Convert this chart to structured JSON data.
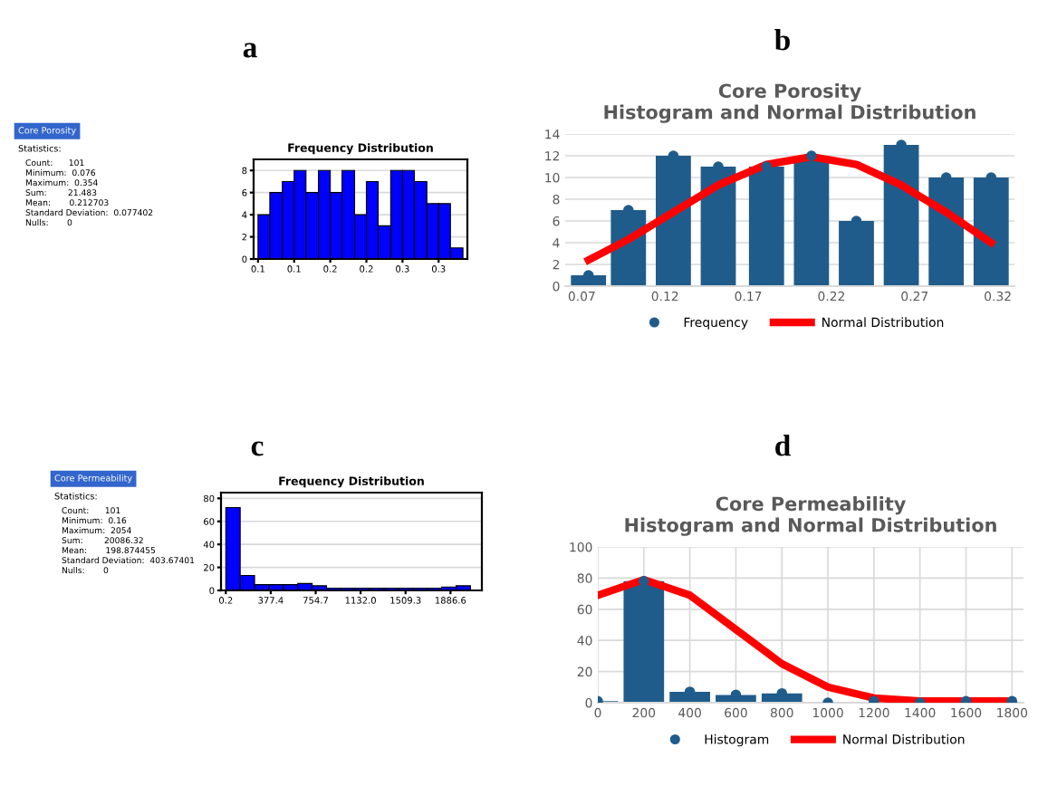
{
  "chart_data": [
    {
      "type": "histogram",
      "title": "Frequency Distribution",
      "annotations": [
        "a",
        "Core Porosity",
        "Statistics:",
        "Count:      101",
        "Minimum:  0.076",
        "Maximum:  0.354",
        "Sum:        21.483",
        "Mean:       0.212703",
        "Standard Deviation:  0.077402",
        "Nulls:       0"
      ],
      "bins": [
        0.076,
        0.092,
        0.109,
        0.125,
        0.141,
        0.158,
        0.174,
        0.19,
        0.207,
        0.223,
        0.239,
        0.256,
        0.272,
        0.288,
        0.305,
        0.321,
        0.337,
        0.354
      ],
      "values": [
        4,
        6,
        7,
        8,
        6,
        8,
        6,
        8,
        4,
        7,
        3,
        8,
        8,
        7,
        5,
        5,
        1
      ],
      "color": "#0000ff",
      "xlim": [
        0.07,
        0.36
      ],
      "xticks": [
        {
          "value": 0.076,
          "label": "0.1"
        },
        {
          "value": 0.125,
          "label": "0.1"
        },
        {
          "value": 0.174,
          "label": "0.2"
        },
        {
          "value": 0.223,
          "label": "0.2"
        },
        {
          "value": 0.272,
          "label": "0.3"
        },
        {
          "value": 0.321,
          "label": "0.3"
        }
      ],
      "ylim": [
        0,
        9
      ],
      "yticks": [
        0,
        2,
        4,
        6,
        8
      ],
      "grid": "y"
    },
    {
      "type": "bar",
      "title": "Core Porosity\nHistogram and Normal Distribution",
      "annotations": [
        "b"
      ],
      "x": [
        0.074,
        0.098,
        0.125,
        0.152,
        0.181,
        0.208,
        0.235,
        0.262,
        0.289,
        0.316
      ],
      "series": [
        {
          "type": "bar",
          "color": "#1f5c8b",
          "values": [
            1,
            7,
            12,
            11,
            11,
            12,
            6,
            13,
            10,
            10
          ]
        },
        {
          "name": "Frequency",
          "type": "scatter",
          "color": "#1f5c8b",
          "marker": "circle",
          "values": [
            1,
            7,
            12,
            11,
            11,
            12,
            6,
            13,
            10,
            10
          ]
        },
        {
          "name": "Normal Distribution",
          "type": "line",
          "color": "#ff0000",
          "marker": "none",
          "values": [
            2.4,
            4.3,
            6.8,
            9.3,
            11.2,
            11.9,
            11.2,
            9.3,
            6.8,
            4.0
          ]
        }
      ],
      "xlim": [
        0.06,
        0.33
      ],
      "xticks": [
        0.07,
        0.12,
        0.17,
        0.22,
        0.27,
        0.32
      ],
      "ylim": [
        0,
        14
      ],
      "yticks": [
        0,
        2,
        4,
        6,
        8,
        10,
        12,
        14
      ],
      "grid": "y",
      "legend": "bottom"
    },
    {
      "type": "histogram",
      "title": "Frequency Distribution",
      "annotations": [
        "c",
        "Core Permeability",
        "Statistics:",
        "Count:      101",
        "Minimum:  0.16",
        "Maximum:  2054",
        "Sum:        20086.32",
        "Mean:       198.874455",
        "Standard Deviation:  403.67401",
        "Nulls:       0"
      ],
      "bins": [
        0.16,
        121,
        241.8,
        362.6,
        483.4,
        604.3,
        725.1,
        845.9,
        966.7,
        1087.5,
        1208.3,
        1329.2,
        1450,
        1570.8,
        1691.6,
        1812.4,
        1933.2,
        2054
      ],
      "values": [
        72,
        13,
        5,
        5,
        5,
        6,
        4,
        2,
        2,
        2,
        2,
        2,
        2,
        2,
        2,
        3,
        4
      ],
      "color": "#0000ff",
      "xlim": [
        -40,
        2150
      ],
      "xticks": [
        0.2,
        377.4,
        754.7,
        {
          "value": 1132,
          "label": "1132.0"
        },
        1509.3,
        1886.6
      ],
      "ylim": [
        0,
        85
      ],
      "yticks": [
        0,
        20,
        40,
        60,
        80
      ],
      "grid": "y"
    },
    {
      "type": "bar",
      "title": "Core Permeability\nHistogram and Normal Distribution",
      "annotations": [
        "d"
      ],
      "x": [
        0,
        200,
        400,
        600,
        800,
        1000,
        1200,
        1400,
        1600,
        1800
      ],
      "series": [
        {
          "type": "bar",
          "color": "#1f5c8b",
          "values": [
            1,
            78,
            7,
            5,
            6,
            0,
            null,
            0,
            1,
            null
          ]
        },
        {
          "name": "Histogram",
          "type": "scatter",
          "color": "#1f5c8b",
          "marker": "circle",
          "values": [
            1,
            78,
            7,
            5,
            6,
            0,
            1,
            0,
            1,
            1
          ]
        },
        {
          "name": "Normal Distribution",
          "type": "line",
          "color": "#ff0000",
          "marker": "none",
          "values": [
            69,
            79,
            69,
            47,
            25,
            10,
            3,
            1,
            1,
            1
          ]
        }
      ],
      "xlim": [
        0,
        1850
      ],
      "xticks": [
        0,
        200,
        400,
        600,
        800,
        1000,
        1200,
        1400,
        1600,
        1800
      ],
      "ylim": [
        0,
        100
      ],
      "yticks": [
        0,
        20,
        40,
        60,
        80,
        100
      ],
      "grid": true,
      "legend": "bottom"
    }
  ]
}
